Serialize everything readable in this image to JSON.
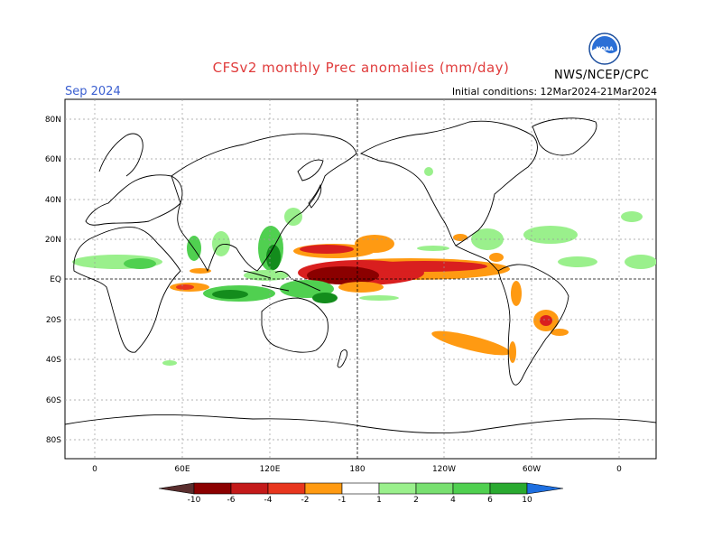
{
  "header": {
    "title": "CFSv2 monthly Prec anomalies (mm/day)",
    "month": "Sep 2024",
    "initial_conditions": "Initial conditions: 12Mar2024-21Mar2024",
    "agency": "NWS/NCEP/CPC",
    "logo_text": "NOAA"
  },
  "axes": {
    "lat_labels": [
      "80N",
      "60N",
      "40N",
      "20N",
      "EQ",
      "20S",
      "40S",
      "60S",
      "80S"
    ],
    "lon_labels": [
      "0",
      "60E",
      "120E",
      "180",
      "120W",
      "60W",
      "0"
    ]
  },
  "legend": {
    "labels": [
      "-10",
      "-6",
      "-4",
      "-2",
      "-1",
      "1",
      "2",
      "4",
      "6",
      "10"
    ],
    "colors": [
      "#5a2e2e",
      "#8b0000",
      "#c41a1a",
      "#e8361e",
      "#ff5a14",
      "#ff9a12",
      "#ffffff",
      "#9af08c",
      "#78e070",
      "#50d050",
      "#2aaa30",
      "#138c1c",
      "#1e6fe0"
    ]
  },
  "colors": {
    "dry_strong": "#8b0000",
    "dry_mid": "#d91f1f",
    "dry_light": "#ff9a12",
    "wet_light": "#9af08c",
    "wet_mid": "#50d050",
    "wet_strong": "#138c1c",
    "title": "#e03c3c",
    "month": "#3b5fd0"
  }
}
